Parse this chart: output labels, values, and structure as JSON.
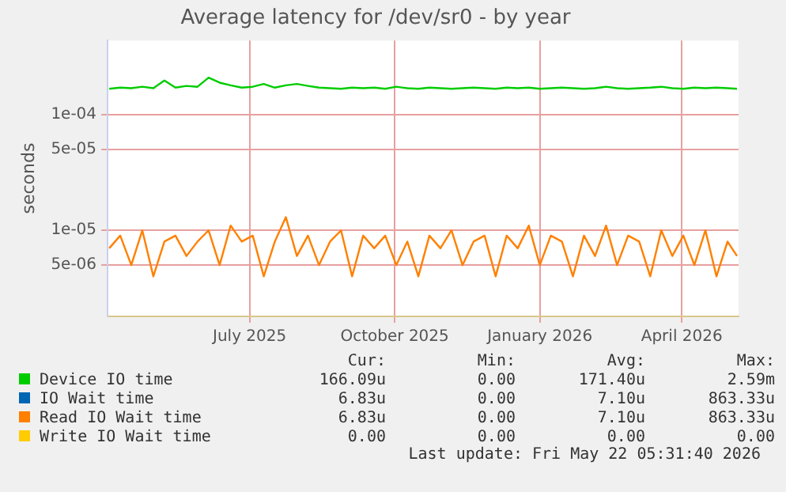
{
  "chart_data": {
    "type": "line",
    "title": "Average latency for /dev/sr0 - by year",
    "ylabel": "seconds",
    "log": "y",
    "grid": true,
    "legend": "bottom",
    "marker": "none",
    "line_style": "solid",
    "x": [
      "2025-04-03",
      "2025-04-10",
      "2025-04-17",
      "2025-04-24",
      "2025-05-01",
      "2025-05-08",
      "2025-05-15",
      "2025-05-22",
      "2025-05-29",
      "2025-06-05",
      "2025-06-12",
      "2025-06-19",
      "2025-06-26",
      "2025-07-03",
      "2025-07-10",
      "2025-07-17",
      "2025-07-24",
      "2025-07-31",
      "2025-08-07",
      "2025-08-14",
      "2025-08-21",
      "2025-08-28",
      "2025-09-04",
      "2025-09-11",
      "2025-09-18",
      "2025-09-25",
      "2025-10-02",
      "2025-10-09",
      "2025-10-16",
      "2025-10-23",
      "2025-10-30",
      "2025-11-06",
      "2025-11-13",
      "2025-11-20",
      "2025-11-27",
      "2025-12-04",
      "2025-12-11",
      "2025-12-18",
      "2025-12-25",
      "2026-01-01",
      "2026-01-08",
      "2026-01-15",
      "2026-01-22",
      "2026-01-29",
      "2026-02-05",
      "2026-02-12",
      "2026-02-19",
      "2026-02-26",
      "2026-03-05",
      "2026-03-12",
      "2026-03-19",
      "2026-03-26",
      "2026-04-02",
      "2026-04-09",
      "2026-04-16",
      "2026-04-23",
      "2026-04-30",
      "2026-05-06"
    ],
    "xlim": [
      "2025-04-02",
      "2026-05-07"
    ],
    "xticks": [
      {
        "value": "2025-07-01",
        "label": "July 2025"
      },
      {
        "value": "2025-10-01",
        "label": "October 2025"
      },
      {
        "value": "2026-01-01",
        "label": "January 2026"
      },
      {
        "value": "2026-04-01",
        "label": "April 2026"
      }
    ],
    "ylim": [
      1.8e-06,
      0.00044
    ],
    "yticks": [
      {
        "value": 5e-06,
        "label": "5e-06"
      },
      {
        "value": 1e-05,
        "label": "1e-05"
      },
      {
        "value": 5e-05,
        "label": "5e-05"
      },
      {
        "value": 0.0001,
        "label": "1e-04"
      }
    ],
    "series": [
      {
        "name": "Device IO time",
        "color": "#00cc00",
        "values": [
          0.000168,
          0.000172,
          0.00017,
          0.000175,
          0.00017,
          0.000198,
          0.000172,
          0.000178,
          0.000175,
          0.00021,
          0.00019,
          0.00018,
          0.000172,
          0.000175,
          0.000185,
          0.000172,
          0.00018,
          0.000185,
          0.000178,
          0.000172,
          0.00017,
          0.000168,
          0.000172,
          0.00017,
          0.000172,
          0.000168,
          0.000175,
          0.00017,
          0.000168,
          0.000172,
          0.00017,
          0.000168,
          0.00017,
          0.000172,
          0.00017,
          0.000168,
          0.000172,
          0.00017,
          0.000172,
          0.000168,
          0.00017,
          0.000172,
          0.00017,
          0.000168,
          0.00017,
          0.000175,
          0.00017,
          0.000168,
          0.00017,
          0.000172,
          0.000175,
          0.00017,
          0.000168,
          0.000172,
          0.00017,
          0.000172,
          0.00017,
          0.000168
        ]
      },
      {
        "name": "IO Wait time",
        "color": "#0066b3",
        "values": [
          null,
          null,
          null,
          null,
          null,
          null,
          null,
          null,
          null,
          null,
          null,
          null,
          null,
          null,
          null,
          null,
          null,
          null,
          null,
          null,
          null,
          null,
          null,
          null,
          null,
          null,
          null,
          null,
          null,
          null,
          null,
          null,
          null,
          null,
          null,
          null,
          null,
          null,
          null,
          null,
          null,
          null,
          null,
          null,
          null,
          null,
          null,
          null,
          null,
          null,
          null,
          null,
          null,
          null,
          null,
          null,
          null,
          null
        ]
      },
      {
        "name": "Read IO Wait time",
        "color": "#ff8000",
        "values": [
          7e-06,
          9e-06,
          5e-06,
          1e-05,
          4e-06,
          8e-06,
          9e-06,
          6e-06,
          8e-06,
          1e-05,
          5e-06,
          1.1e-05,
          8e-06,
          9e-06,
          4e-06,
          8e-06,
          1.3e-05,
          6e-06,
          9e-06,
          5e-06,
          8e-06,
          1e-05,
          4e-06,
          9e-06,
          7e-06,
          9e-06,
          5e-06,
          8e-06,
          4e-06,
          9e-06,
          7e-06,
          1e-05,
          5e-06,
          8e-06,
          9e-06,
          4e-06,
          9e-06,
          7e-06,
          1.1e-05,
          5e-06,
          9e-06,
          8e-06,
          4e-06,
          9e-06,
          6e-06,
          1.1e-05,
          5e-06,
          9e-06,
          8e-06,
          4e-06,
          1e-05,
          6e-06,
          9e-06,
          5e-06,
          1e-05,
          4e-06,
          8e-06,
          6e-06
        ]
      },
      {
        "name": "Write IO Wait time",
        "color": "#ffcc00",
        "values": [
          null,
          null,
          null,
          null,
          null,
          null,
          null,
          null,
          null,
          null,
          null,
          null,
          null,
          null,
          null,
          null,
          null,
          null,
          null,
          null,
          null,
          null,
          null,
          null,
          null,
          null,
          null,
          null,
          null,
          null,
          null,
          null,
          null,
          null,
          null,
          null,
          null,
          null,
          null,
          null,
          null,
          null,
          null,
          null,
          null,
          null,
          null,
          null,
          null,
          null,
          null,
          null,
          null,
          null,
          null,
          null,
          null,
          null
        ]
      }
    ],
    "annotations": [
      "Cur:",
      "Min:",
      "Avg:",
      "Max:",
      "166.09u",
      "0.00",
      "171.40u",
      "2.59m",
      "6.83u",
      "0.00",
      "7.10u",
      "863.33u",
      "6.83u",
      "0.00",
      "7.10u",
      "863.33u",
      "0.00",
      "0.00",
      "0.00",
      "0.00",
      "Last update: Fri May 22 05:31:40 2026"
    ]
  }
}
